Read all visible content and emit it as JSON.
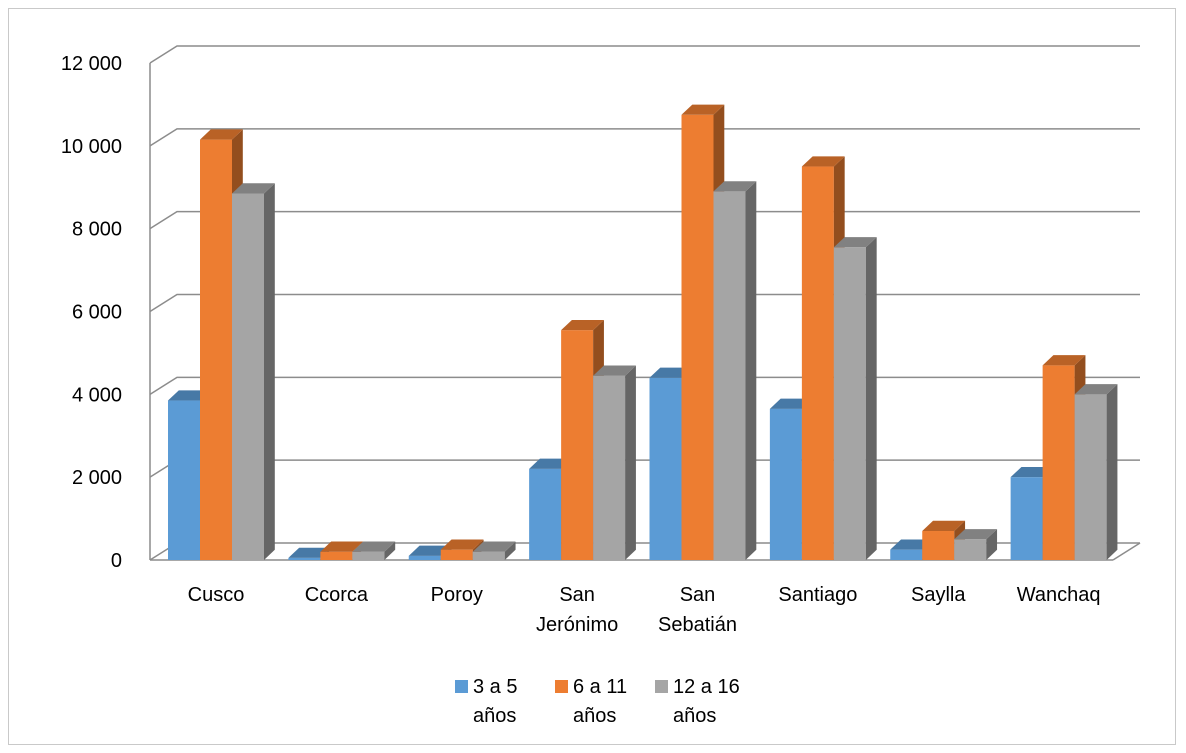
{
  "chart_data": {
    "type": "bar",
    "title": "",
    "xlabel": "",
    "ylabel": "",
    "ylim": [
      0,
      12000
    ],
    "yticks": [
      0,
      2000,
      4000,
      6000,
      8000,
      10000,
      12000
    ],
    "ytick_labels": [
      "0",
      "2 000",
      "4 000",
      "6 000",
      "8 000",
      "10 000",
      "12 000"
    ],
    "categories": [
      [
        "Cusco"
      ],
      [
        "Ccorca"
      ],
      [
        "Poroy"
      ],
      [
        "San",
        "Jerónimo"
      ],
      [
        "San",
        "Sebatián"
      ],
      [
        "Santiago"
      ],
      [
        "Saylla"
      ],
      [
        "Wanchaq"
      ]
    ],
    "series": [
      {
        "name": [
          "3 a 5",
          "años"
        ],
        "color": "#5b9bd5",
        "values": [
          3850,
          50,
          100,
          2200,
          4400,
          3650,
          250,
          2000
        ]
      },
      {
        "name": [
          "6 a 11",
          "años"
        ],
        "color": "#ed7d31",
        "values": [
          10150,
          200,
          250,
          5550,
          10750,
          9500,
          700,
          4700
        ]
      },
      {
        "name": [
          "12 a 16",
          "años"
        ],
        "color": "#a5a5a5",
        "values": [
          8850,
          200,
          200,
          4450,
          8900,
          7550,
          500,
          4000
        ]
      }
    ],
    "grid": true,
    "legend_position": "bottom",
    "style": "3d-clustered-column"
  }
}
